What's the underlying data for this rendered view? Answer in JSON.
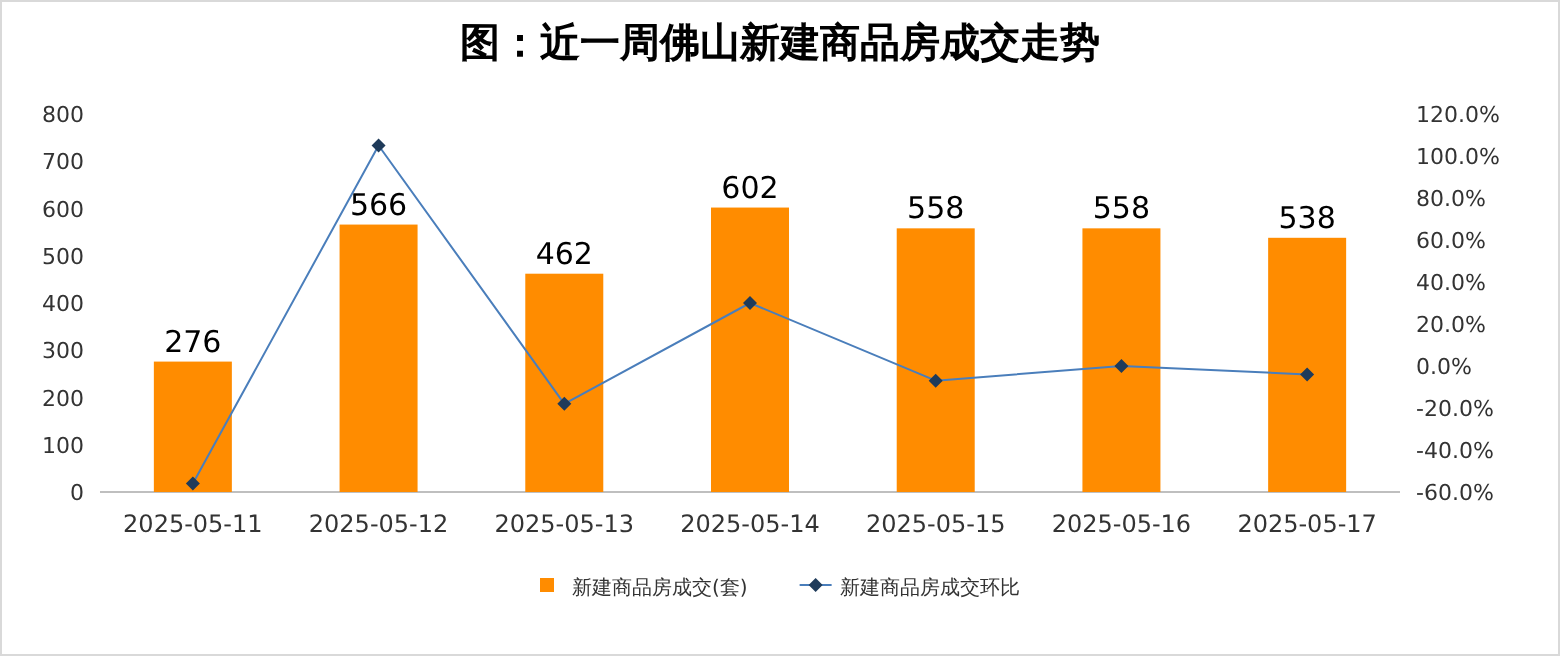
{
  "chart_data": {
    "type": "bar",
    "title": "图：近一周佛山新建商品房成交走势",
    "categories": [
      "2025-05-11",
      "2025-05-12",
      "2025-05-13",
      "2025-05-14",
      "2025-05-15",
      "2025-05-16",
      "2025-05-17"
    ],
    "series": [
      {
        "name": "新建商品房成交(套)",
        "color": "#ff8c00",
        "values": [
          276,
          566,
          462,
          602,
          558,
          558,
          538
        ],
        "value_labels": [
          "276",
          "566",
          "462",
          "602",
          "558",
          "558",
          "538"
        ]
      },
      {
        "name": "新建商品房成交环比",
        "type": "line",
        "axis": "y2",
        "color": "#4a7ebb",
        "marker": "diamond",
        "line_style": "solid",
        "values": [
          -56,
          105,
          -18,
          30,
          -7,
          0,
          -4
        ]
      }
    ],
    "ylim": [
      0,
      800
    ],
    "yticks": [
      0,
      100,
      200,
      300,
      400,
      500,
      600,
      700,
      800
    ],
    "y2lim": [
      -60,
      120
    ],
    "y2ticks": [
      {
        "value": -60,
        "label": "-60.0%"
      },
      {
        "value": -40,
        "label": "-40.0%"
      },
      {
        "value": -20,
        "label": "-20.0%"
      },
      {
        "value": 0,
        "label": "0.0%"
      },
      {
        "value": 20,
        "label": "20.0%"
      },
      {
        "value": 40,
        "label": "40.0%"
      },
      {
        "value": 60,
        "label": "60.0%"
      },
      {
        "value": 80,
        "label": "80.0%"
      },
      {
        "value": 100,
        "label": "100.0%"
      },
      {
        "value": 120,
        "label": "120.0%"
      }
    ],
    "legend": "bottom"
  }
}
